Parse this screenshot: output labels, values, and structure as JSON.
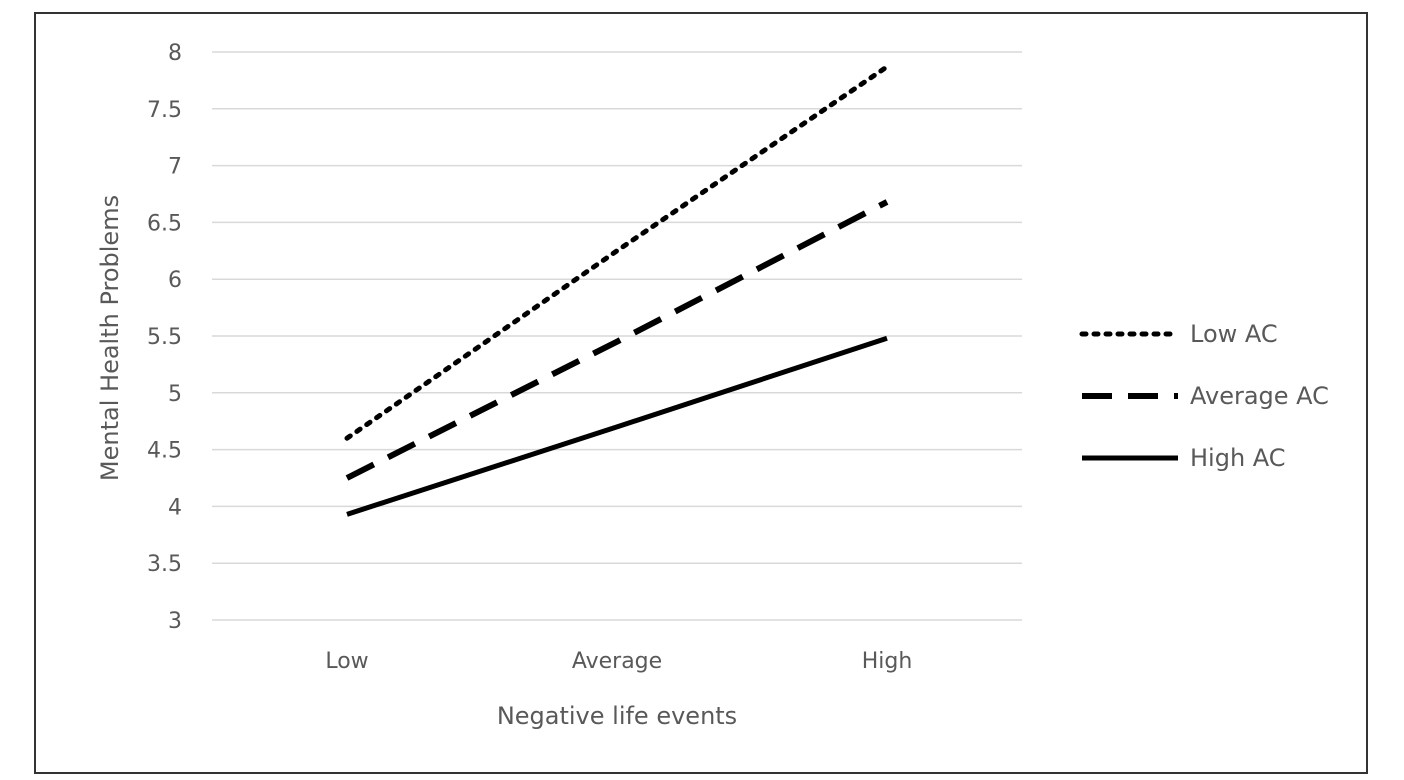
{
  "chart_data": {
    "type": "line",
    "title": "",
    "categories": [
      "Low",
      "Average",
      "High"
    ],
    "xlabel": "Negative life events",
    "ylabel": "Mental Health Problems",
    "ylim": [
      3,
      8
    ],
    "yticks": [
      "3",
      "3.5",
      "4",
      "4.5",
      "5",
      "5.5",
      "6",
      "6.5",
      "7",
      "7.5",
      "8"
    ],
    "grid": true,
    "legend_position": "right",
    "series": [
      {
        "name": "Low AC",
        "values": [
          4.6,
          6.25,
          7.87
        ],
        "style": "dotted",
        "color": "#000000"
      },
      {
        "name": "Average AC",
        "values": [
          4.25,
          5.45,
          6.68
        ],
        "style": "dashed",
        "color": "#000000"
      },
      {
        "name": "High AC",
        "values": [
          3.93,
          4.7,
          5.48
        ],
        "style": "solid",
        "color": "#000000"
      }
    ]
  }
}
